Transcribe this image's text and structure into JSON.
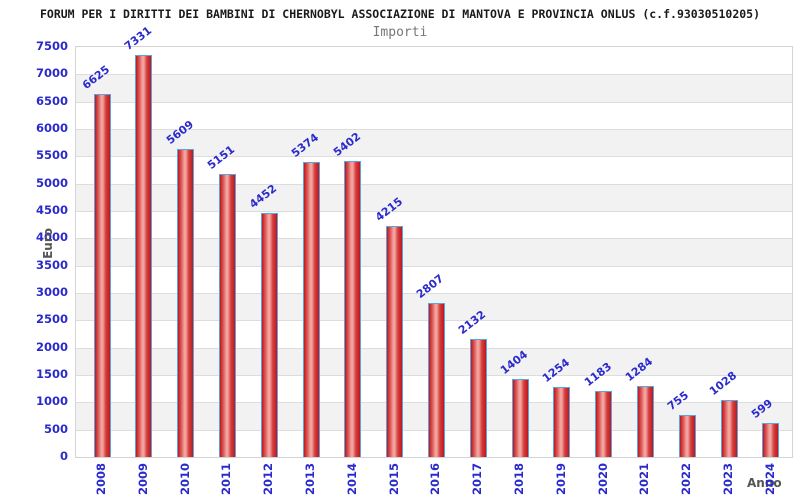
{
  "page": {
    "title": "FORUM PER I DIRITTI DEI BAMBINI DI CHERNOBYL ASSOCIAZIONE DI MANTOVA E PROVINCIA ONLUS (c.f.93030510205)",
    "subtitle": "Importi"
  },
  "chart_data": {
    "type": "bar",
    "title": "Importi",
    "categories": [
      "2008",
      "2009",
      "2010",
      "2011",
      "2012",
      "2013",
      "2014",
      "2015",
      "2016",
      "2017",
      "2018",
      "2019",
      "2020",
      "2021",
      "2022",
      "2023",
      "2024"
    ],
    "values": [
      6625,
      7331,
      5609,
      5151,
      4452,
      5374,
      5402,
      4215,
      2807,
      2132,
      1404,
      1254,
      1183,
      1284,
      755,
      1028,
      599
    ],
    "xlabel": "Anno",
    "ylabel": "Euro",
    "ylim": [
      0,
      7500
    ],
    "ytick_step": 500,
    "grid": true,
    "legend": "none",
    "data_labels_rotated": true,
    "colors": {
      "label_blue": "#2a2acc",
      "bar_border": "#58a6e0",
      "bar_dark": "#c0161c",
      "bar_light": "#f2a39e",
      "gridline": "#dddddd",
      "band_white": "#ffffff",
      "band_gray": "#f2f2f2",
      "plot_border": "#d4d4d4",
      "title_color": "#1a1a1a",
      "subtitle_color": "#777777",
      "axis_title_color": "#555555"
    }
  }
}
